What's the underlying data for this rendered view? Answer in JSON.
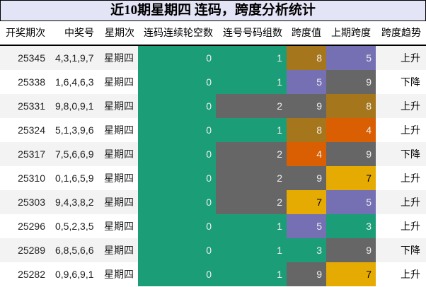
{
  "title": "近10期星期四 连码，跨度分析统计",
  "headers": [
    "开奖期次",
    "中奖号",
    "星期次",
    "连码连续轮空数",
    "连号号码组数",
    "跨度值",
    "上期跨度",
    "跨度趋势"
  ],
  "palette": {
    "green": "#1b9e77",
    "brown": "#a6761d",
    "purple": "#7570b3",
    "gray": "#666666",
    "orange": "#d95f02",
    "yellow": "#e6ab02",
    "title_bg": "#e4e4f7",
    "row_alt": "#f3f3f3"
  },
  "rows": [
    {
      "issue": "25345",
      "numbers": "4,3,1,9,7",
      "weekday": "星期四",
      "lian_miss": "0",
      "groups": "1",
      "span": "8",
      "prev_span": "5",
      "trend": "上升",
      "lian_color": "#1b9e77",
      "groups_color": "#1b9e77",
      "span_color": "#a6761d",
      "prev_color": "#7570b3"
    },
    {
      "issue": "25338",
      "numbers": "1,6,4,6,3",
      "weekday": "星期四",
      "lian_miss": "0",
      "groups": "1",
      "span": "5",
      "prev_span": "9",
      "trend": "下降",
      "lian_color": "#1b9e77",
      "groups_color": "#1b9e77",
      "span_color": "#7570b3",
      "prev_color": "#666666"
    },
    {
      "issue": "25331",
      "numbers": "9,8,0,9,1",
      "weekday": "星期四",
      "lian_miss": "0",
      "groups": "2",
      "span": "9",
      "prev_span": "8",
      "trend": "上升",
      "lian_color": "#1b9e77",
      "groups_color": "#666666",
      "span_color": "#666666",
      "prev_color": "#a6761d"
    },
    {
      "issue": "25324",
      "numbers": "5,1,3,9,6",
      "weekday": "星期四",
      "lian_miss": "0",
      "groups": "1",
      "span": "8",
      "prev_span": "4",
      "trend": "上升",
      "lian_color": "#1b9e77",
      "groups_color": "#1b9e77",
      "span_color": "#a6761d",
      "prev_color": "#d95f02"
    },
    {
      "issue": "25317",
      "numbers": "7,5,6,6,9",
      "weekday": "星期四",
      "lian_miss": "0",
      "groups": "2",
      "span": "4",
      "prev_span": "9",
      "trend": "下降",
      "lian_color": "#1b9e77",
      "groups_color": "#666666",
      "span_color": "#d95f02",
      "prev_color": "#666666"
    },
    {
      "issue": "25310",
      "numbers": "0,1,6,5,9",
      "weekday": "星期四",
      "lian_miss": "0",
      "groups": "2",
      "span": "9",
      "prev_span": "7",
      "trend": "上升",
      "lian_color": "#1b9e77",
      "groups_color": "#666666",
      "span_color": "#666666",
      "prev_color": "#e6ab02"
    },
    {
      "issue": "25303",
      "numbers": "9,4,3,8,2",
      "weekday": "星期四",
      "lian_miss": "0",
      "groups": "2",
      "span": "7",
      "prev_span": "5",
      "trend": "上升",
      "lian_color": "#1b9e77",
      "groups_color": "#666666",
      "span_color": "#e6ab02",
      "prev_color": "#7570b3"
    },
    {
      "issue": "25296",
      "numbers": "0,5,2,3,5",
      "weekday": "星期四",
      "lian_miss": "0",
      "groups": "1",
      "span": "5",
      "prev_span": "3",
      "trend": "上升",
      "lian_color": "#1b9e77",
      "groups_color": "#1b9e77",
      "span_color": "#7570b3",
      "prev_color": "#1b9e77"
    },
    {
      "issue": "25289",
      "numbers": "6,8,5,6,6",
      "weekday": "星期四",
      "lian_miss": "0",
      "groups": "1",
      "span": "3",
      "prev_span": "9",
      "trend": "下降",
      "lian_color": "#1b9e77",
      "groups_color": "#1b9e77",
      "span_color": "#1b9e77",
      "prev_color": "#666666"
    },
    {
      "issue": "25282",
      "numbers": "0,9,6,9,1",
      "weekday": "星期四",
      "lian_miss": "0",
      "groups": "1",
      "span": "9",
      "prev_span": "7",
      "trend": "上升",
      "lian_color": "#1b9e77",
      "groups_color": "#1b9e77",
      "span_color": "#666666",
      "prev_color": "#e6ab02"
    }
  ]
}
